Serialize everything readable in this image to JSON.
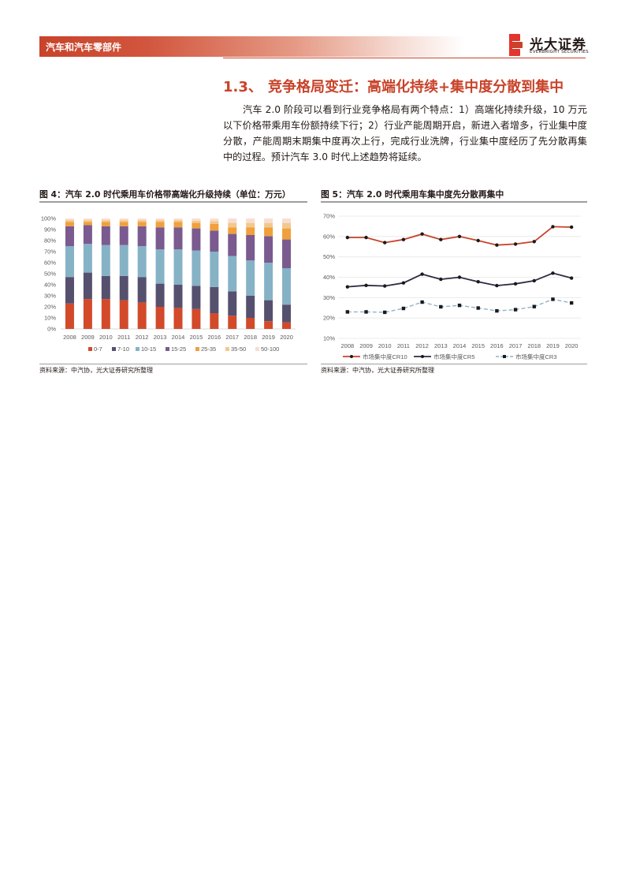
{
  "header": {
    "section_label": "汽车和汽车零部件",
    "logo_cn": "光大证券",
    "logo_en": "EVERBRIGHT SECURITIES"
  },
  "section": {
    "number": "1.3、",
    "title": "竞争格局变迁：高端化持续+集中度分散到集中"
  },
  "paragraph": "汽车 2.0 阶段可以看到行业竞争格局有两个特点：1）高端化持续升级，10 万元以下价格带乘用车份额持续下行；2）行业产能周期开启，新进入者增多，行业集中度分散，产能周期末期集中度再次上行，完成行业洗牌，行业集中度经历了先分散再集中的过程。预计汽车 3.0 时代上述趋势将延续。",
  "figures": {
    "fig4": {
      "title": "图 4：汽车 2.0 时代乘用车价格带高端化升级持续（单位：万元）",
      "source": "资料来源：中汽协，光大证券研究所整理"
    },
    "fig5": {
      "title": "图 5：汽车 2.0 时代乘用车集中度先分散再集中",
      "source": "资料来源：中汽协，光大证券研究所整理"
    }
  },
  "colors": {
    "accent": "#c8432a",
    "band_0_7": "#d24a2a",
    "band_7_10": "#56506f",
    "band_10_15": "#86b2c6",
    "band_15_25": "#7a5a8f",
    "band_25_35": "#f0a03c",
    "band_35_50": "#f3c88c",
    "band_50_100": "#f8ddd3"
  },
  "chart_data": [
    {
      "type": "bar",
      "stacked": true,
      "categories": [
        "2008",
        "2009",
        "2010",
        "2011",
        "2012",
        "2013",
        "2014",
        "2015",
        "2016",
        "2017",
        "2018",
        "2019",
        "2020"
      ],
      "yticks": [
        "0%",
        "10%",
        "20%",
        "30%",
        "40%",
        "50%",
        "60%",
        "70%",
        "80%",
        "90%",
        "100%"
      ],
      "ylim": [
        0,
        100
      ],
      "legend_position": "bottom",
      "series": [
        {
          "name": "0-7",
          "color": "#d24a2a",
          "values": [
            23,
            27,
            27,
            26,
            24,
            20,
            19,
            18,
            14,
            12,
            10,
            7,
            6
          ]
        },
        {
          "name": "7-10",
          "color": "#56506f",
          "values": [
            24,
            24,
            21,
            22,
            23,
            21,
            21,
            21,
            24,
            22,
            20,
            19,
            16
          ]
        },
        {
          "name": "10-15",
          "color": "#86b2c6",
          "values": [
            28,
            26,
            28,
            28,
            28,
            31,
            32,
            32,
            32,
            32,
            32,
            34,
            33
          ]
        },
        {
          "name": "15-25",
          "color": "#7a5a8f",
          "values": [
            18,
            17,
            17,
            17,
            18,
            20,
            20,
            20,
            19,
            20,
            23,
            24,
            26
          ]
        },
        {
          "name": "25-35",
          "color": "#f0a03c",
          "values": [
            4,
            3,
            4,
            4,
            4,
            5,
            5,
            5,
            6,
            6,
            7,
            8,
            10
          ]
        },
        {
          "name": "35-50",
          "color": "#f3c88c",
          "values": [
            1.5,
            1.5,
            1.5,
            1.5,
            1.5,
            1.5,
            1.5,
            2,
            2.5,
            4,
            4,
            4,
            5
          ]
        },
        {
          "name": "50-100",
          "color": "#f8ddd3",
          "values": [
            1.5,
            1.5,
            1.5,
            1.5,
            1.5,
            1.5,
            1.5,
            2,
            2.5,
            4,
            4,
            4,
            4
          ]
        }
      ]
    },
    {
      "type": "line",
      "x": [
        "2008",
        "2009",
        "2010",
        "2011",
        "2012",
        "2013",
        "2014",
        "2015",
        "2016",
        "2017",
        "2018",
        "2019",
        "2020"
      ],
      "yticks": [
        "10%",
        "20%",
        "30%",
        "40%",
        "50%",
        "60%",
        "70%"
      ],
      "ylim": [
        10,
        70
      ],
      "legend_position": "bottom",
      "series": [
        {
          "name": "市场集中度CR10",
          "color": "#c8432a",
          "marker": "circle",
          "dash": false,
          "values": [
            59.5,
            59.5,
            57.0,
            58.5,
            61.2,
            58.5,
            60.0,
            58.0,
            55.8,
            56.3,
            57.5,
            64.8,
            64.6
          ]
        },
        {
          "name": "市场集中度CR5",
          "color": "#2e2b45",
          "marker": "circle",
          "dash": false,
          "values": [
            35.3,
            36.0,
            35.7,
            37.2,
            41.5,
            39.0,
            40.0,
            37.8,
            35.9,
            36.8,
            38.3,
            42.0,
            39.6
          ]
        },
        {
          "name": "市场集中度CR3",
          "color": "#8db3cb",
          "marker": "square",
          "dash": true,
          "values": [
            23.0,
            23.0,
            22.8,
            24.7,
            27.8,
            25.5,
            26.2,
            24.9,
            23.5,
            24.1,
            25.6,
            29.2,
            27.4
          ]
        }
      ]
    }
  ]
}
